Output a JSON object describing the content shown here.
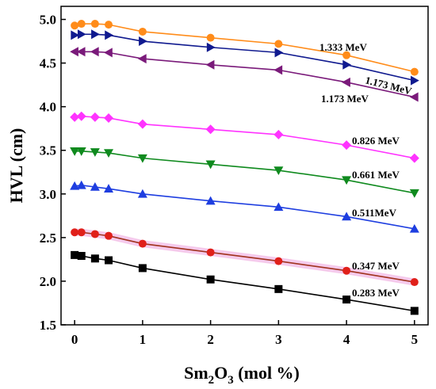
{
  "chart_data": {
    "type": "line",
    "title": "",
    "xlabel": {
      "base": "Sm",
      "sub1": "2",
      "mid": "O",
      "sub2": "3",
      "tail": " (mol %)"
    },
    "ylabel": "HVL (cm)",
    "xlim": [
      -0.2,
      5.2
    ],
    "ylim": [
      1.5,
      5.15
    ],
    "xticks": [
      0,
      1,
      2,
      3,
      4,
      5
    ],
    "yticks": [
      1.5,
      2.0,
      2.5,
      3.0,
      3.5,
      4.0,
      4.5,
      5.0
    ],
    "xtick_labels": [
      "0",
      "1",
      "2",
      "3",
      "4",
      "5"
    ],
    "ytick_labels": [
      "1.5",
      "2.0",
      "2.5",
      "3.0",
      "3.5",
      "4.0",
      "4.5",
      "5.0"
    ],
    "grid": false,
    "legend": "none",
    "x": [
      0,
      0.1,
      0.3,
      0.5,
      1,
      2,
      3,
      4,
      5
    ],
    "series": [
      {
        "name": "0.283 MeV",
        "color": "#000000",
        "marker": "square",
        "values": [
          2.3,
          2.29,
          2.26,
          2.24,
          2.15,
          2.02,
          1.91,
          1.79,
          1.66
        ]
      },
      {
        "name": "0.347 MeV",
        "color": "#a0331e",
        "marker": "circle-red",
        "values": [
          2.56,
          2.56,
          2.54,
          2.52,
          2.43,
          2.33,
          2.23,
          2.12,
          1.99
        ]
      },
      {
        "name": "0.511MeV",
        "color": "#1e3ee0",
        "marker": "triangle-up",
        "values": [
          3.09,
          3.1,
          3.08,
          3.06,
          3.0,
          2.92,
          2.85,
          2.74,
          2.6
        ]
      },
      {
        "name": "0.661 MeV",
        "color": "#0f8a1e",
        "marker": "triangle-down",
        "values": [
          3.49,
          3.49,
          3.48,
          3.47,
          3.41,
          3.34,
          3.27,
          3.16,
          3.01
        ]
      },
      {
        "name": "0.826 MeV",
        "color": "#ff33ff",
        "marker": "diamond",
        "values": [
          3.88,
          3.89,
          3.88,
          3.87,
          3.8,
          3.74,
          3.68,
          3.56,
          3.41
        ]
      },
      {
        "name": "1.173 MeV",
        "color": "#7a1a7a",
        "marker": "triangle-left",
        "values": [
          4.63,
          4.63,
          4.63,
          4.62,
          4.55,
          4.48,
          4.42,
          4.28,
          4.11
        ]
      },
      {
        "name": "1.173 MeV",
        "color": "#101a8f",
        "marker": "triangle-right",
        "values": [
          4.82,
          4.83,
          4.83,
          4.82,
          4.75,
          4.68,
          4.62,
          4.48,
          4.3
        ]
      },
      {
        "name": "1.333 MeV",
        "color": "#ff8c1a",
        "marker": "circle",
        "values": [
          4.93,
          4.95,
          4.95,
          4.94,
          4.86,
          4.79,
          4.72,
          4.59,
          4.4
        ]
      }
    ]
  }
}
